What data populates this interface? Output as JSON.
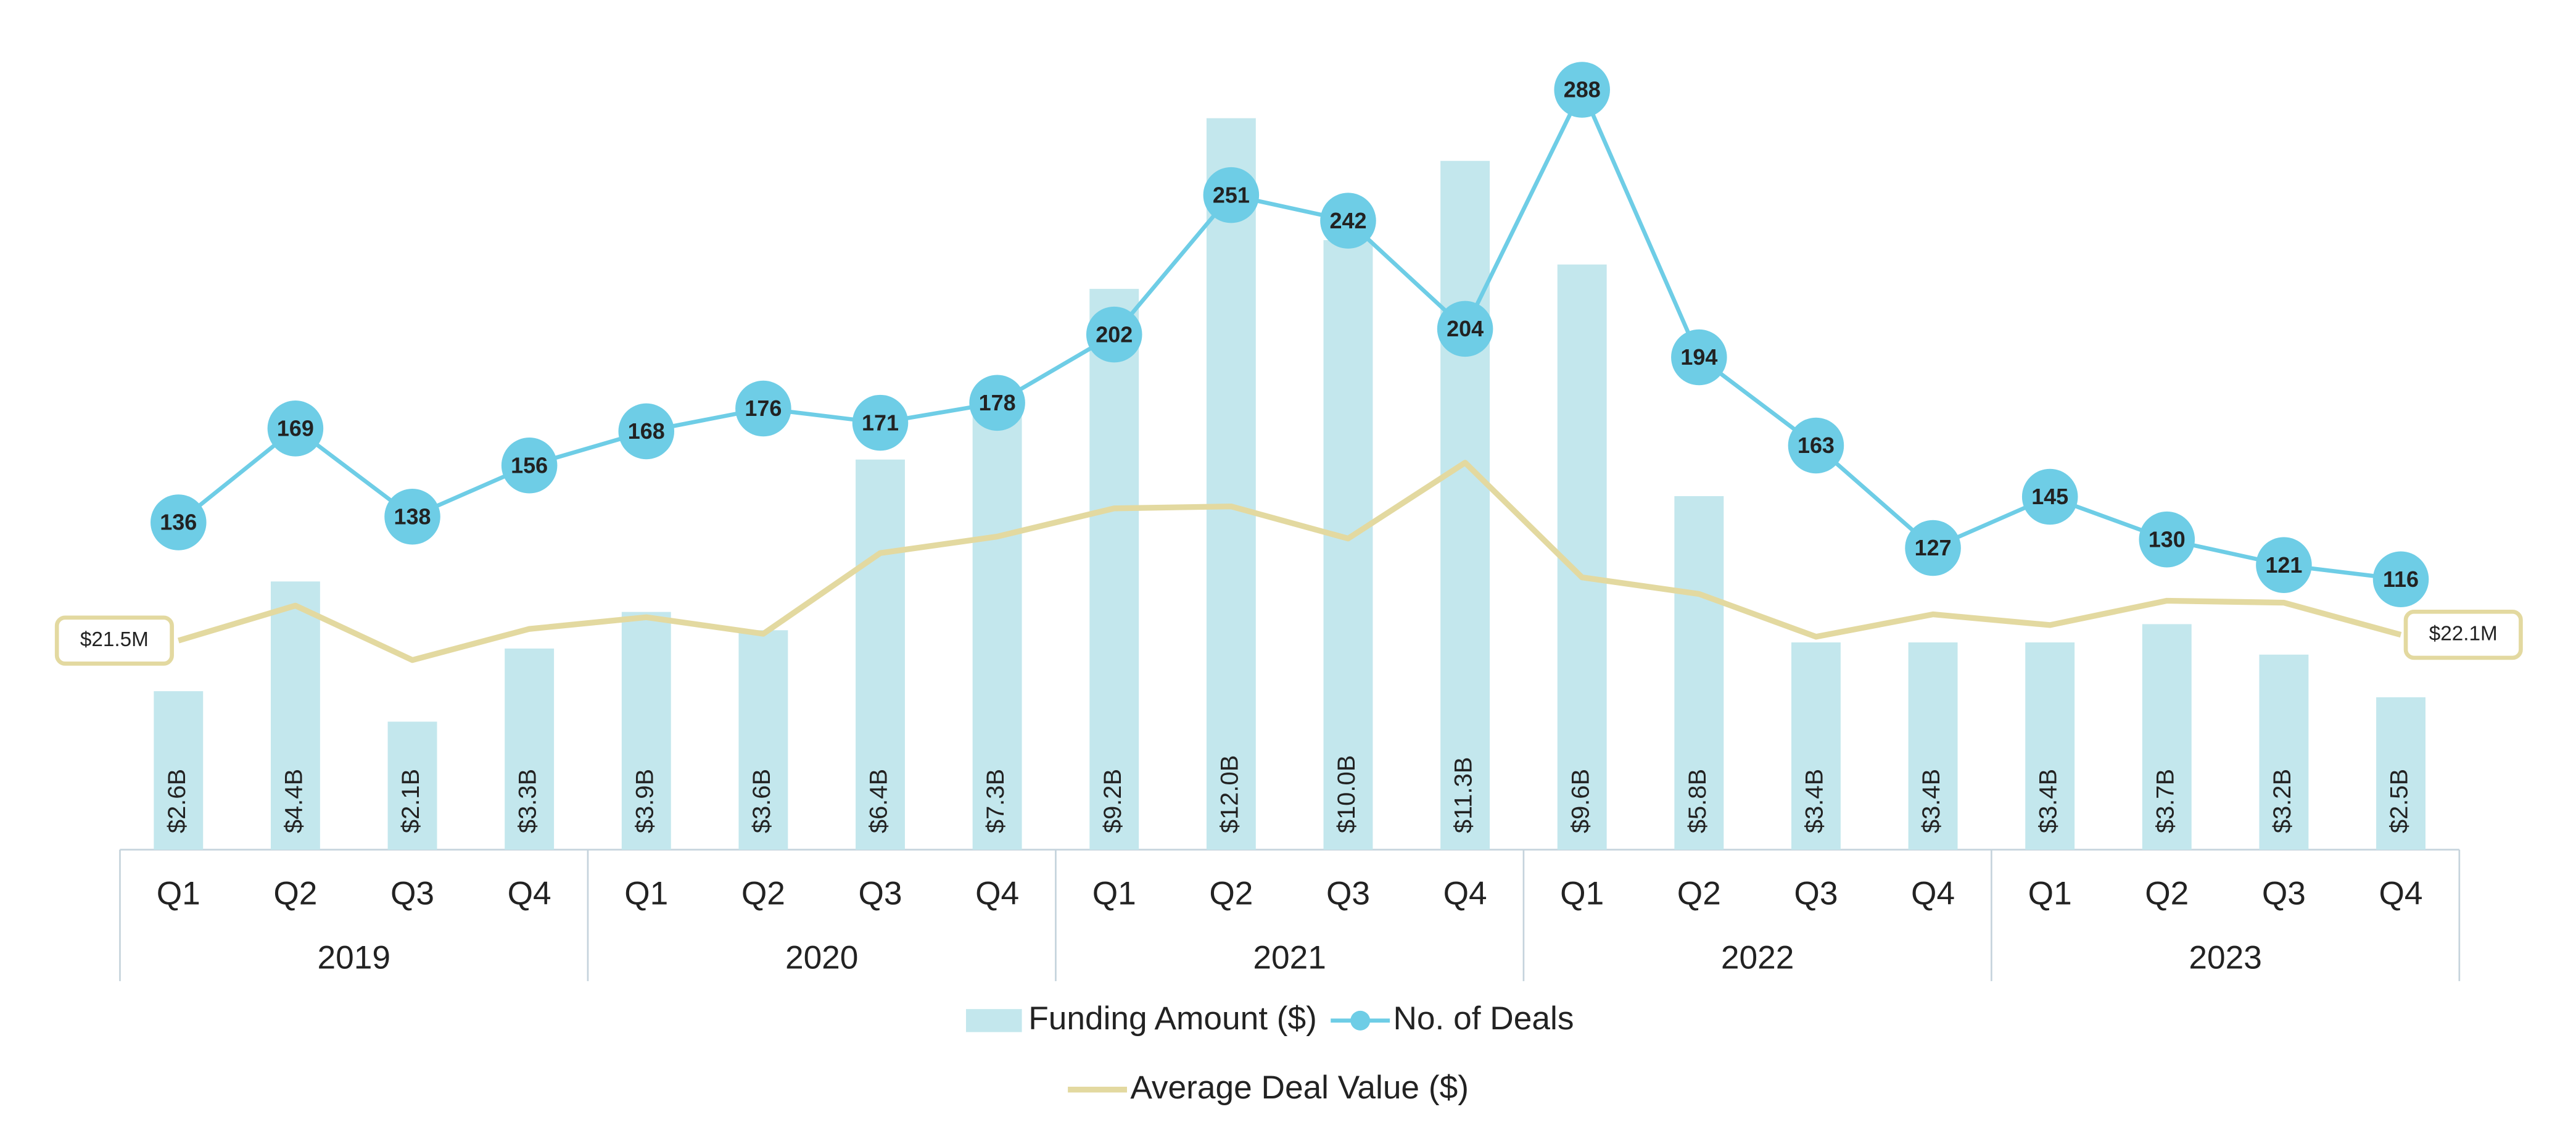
{
  "chart_data": {
    "type": "combo",
    "categories": [
      "Q1",
      "Q2",
      "Q3",
      "Q4",
      "Q1",
      "Q2",
      "Q3",
      "Q4",
      "Q1",
      "Q2",
      "Q3",
      "Q4",
      "Q1",
      "Q2",
      "Q3",
      "Q4",
      "Q1",
      "Q2",
      "Q3",
      "Q4"
    ],
    "group_labels": [
      "2019",
      "2020",
      "2021",
      "2022",
      "2023"
    ],
    "series": [
      {
        "name": "Funding Amount ($)",
        "type": "bar",
        "color": "#c3e7ed",
        "ylim": [
          0,
          13.4
        ],
        "values": [
          2.6,
          4.4,
          2.1,
          3.3,
          3.9,
          3.6,
          6.4,
          7.3,
          9.2,
          12.0,
          10.0,
          11.3,
          9.6,
          5.8,
          3.4,
          3.4,
          3.4,
          3.7,
          3.2,
          2.5
        ],
        "value_labels": [
          "$2.6B",
          "$4.4B",
          "$2.1B",
          "$3.3B",
          "$3.9B",
          "$3.6B",
          "$6.4B",
          "$7.3B",
          "$9.2B",
          "$12.0B",
          "$10.0B",
          "$11.3B",
          "$9.6B",
          "$5.8B",
          "$3.4B",
          "$3.4B",
          "$3.4B",
          "$3.7B",
          "$3.2B",
          "$2.5B"
        ]
      },
      {
        "name": "No. of Deals",
        "type": "line",
        "color": "#6ecde6",
        "markers": true,
        "ylim": [
          21,
          308
        ],
        "values": [
          136,
          169,
          138,
          156,
          168,
          176,
          171,
          178,
          202,
          251,
          242,
          204,
          288,
          194,
          163,
          127,
          145,
          130,
          121,
          116
        ]
      },
      {
        "name": "Average Deal Value ($)",
        "type": "line",
        "color": "#e3d9a0",
        "markers": false,
        "ylim": [
          0,
          84
        ],
        "values": [
          21.5,
          25.1,
          19.5,
          22.7,
          23.9,
          22.2,
          30.5,
          32.2,
          35.1,
          35.3,
          32.0,
          39.8,
          28.0,
          26.3,
          21.9,
          24.2,
          23.1,
          25.6,
          25.4,
          22.1
        ],
        "value_labels": [
          "$21.5M",
          null,
          null,
          null,
          null,
          null,
          null,
          null,
          null,
          null,
          null,
          null,
          null,
          null,
          null,
          null,
          null,
          null,
          null,
          "$22.1M"
        ]
      }
    ]
  }
}
